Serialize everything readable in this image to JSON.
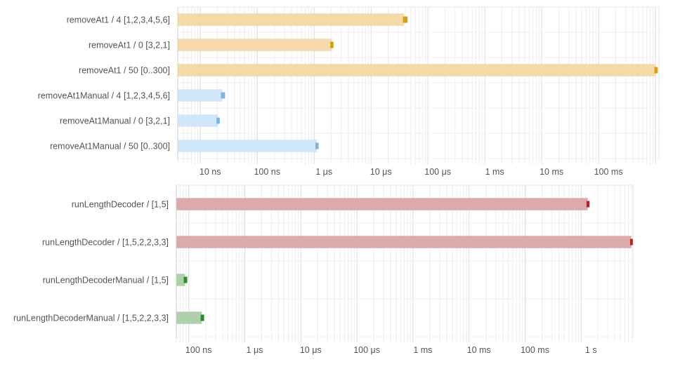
{
  "chart_data": [
    {
      "type": "bar",
      "orientation": "horizontal",
      "xscale": "log",
      "xunit": "seconds",
      "xlim": [
        4e-09,
        1.15
      ],
      "grid": true,
      "categories": [
        "removeAt1 / 4 [1,2,3,4,5,6]",
        "removeAt1 / 0 [3,2,1]",
        "removeAt1 / 50 [0..300]",
        "removeAt1Manual / 4 [1,2,3,4,5,6]",
        "removeAt1Manual / 0 [3,2,1]",
        "removeAt1Manual / 50 [0..300]"
      ],
      "values": [
        3.8e-05,
        2e-06,
        1.0,
        2.4e-08,
        2e-08,
        1.1e-06
      ],
      "error_high": [
        4.2e-05,
        2.1e-06,
        1.05,
        2.6e-08,
        2.1e-08,
        1.15e-06
      ],
      "colors": [
        "#f5d9a8",
        "#f5d9a8",
        "#f5d9a8",
        "#d1e6f9",
        "#d1e6f9",
        "#d1e6f9"
      ],
      "error_colors": [
        "#d4a017",
        "#d4a017",
        "#d4a017",
        "#7fb2dc",
        "#7fb2dc",
        "#7fb2dc"
      ],
      "ticks": [
        {
          "value": 1e-08,
          "label": "10 ns"
        },
        {
          "value": 1e-07,
          "label": "100 ns"
        },
        {
          "value": 1e-06,
          "label": "1 μs"
        },
        {
          "value": 1e-05,
          "label": "10 μs"
        },
        {
          "value": 0.0001,
          "label": "100 μs"
        },
        {
          "value": 0.001,
          "label": "1 ms"
        },
        {
          "value": 0.01,
          "label": "10 ms"
        },
        {
          "value": 0.1,
          "label": "100 ms"
        }
      ]
    },
    {
      "type": "bar",
      "orientation": "horizontal",
      "xscale": "log",
      "xunit": "seconds",
      "xlim": [
        6e-08,
        8.4
      ],
      "grid": true,
      "categories": [
        "runLengthDecoder / [1,5]",
        "runLengthDecoder / [1,5,2,2,3,3]",
        "runLengthDecoderManual / [1,5]",
        "runLengthDecoderManual / [1,5,2,2,3,3]"
      ],
      "values": [
        1.3,
        7.8,
        8.5e-08,
        1.7e-07
      ],
      "error_high": [
        1.35,
        8.0,
        9e-08,
        1.8e-07
      ],
      "colors": [
        "#dcaaad",
        "#dcaaad",
        "#aed0ad",
        "#aed0ad"
      ],
      "error_colors": [
        "#b22222",
        "#b22222",
        "#2e8b2e",
        "#2e8b2e"
      ],
      "ticks": [
        {
          "value": 1e-07,
          "label": "100 ns"
        },
        {
          "value": 1e-06,
          "label": "1 μs"
        },
        {
          "value": 1e-05,
          "label": "10 μs"
        },
        {
          "value": 0.0001,
          "label": "100 μs"
        },
        {
          "value": 0.001,
          "label": "1 ms"
        },
        {
          "value": 0.01,
          "label": "10 ms"
        },
        {
          "value": 0.1,
          "label": "100 ms"
        },
        {
          "value": 1,
          "label": "1 s"
        }
      ]
    }
  ]
}
